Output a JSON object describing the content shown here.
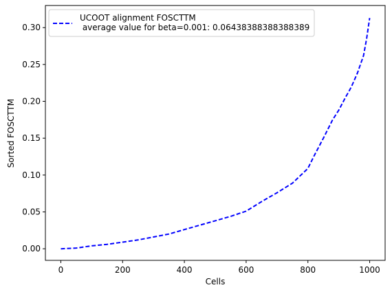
{
  "chart_data": {
    "type": "line",
    "xlabel": "Cells",
    "ylabel": "Sorted FOSCTTM",
    "xlim": [
      -50,
      1050
    ],
    "ylim": [
      -0.0157,
      0.33
    ],
    "grid": false,
    "legend_position": "top-left",
    "x_ticks": [
      0,
      200,
      400,
      600,
      800,
      1000
    ],
    "x_tick_labels": [
      "0",
      "200",
      "400",
      "600",
      "800",
      "1000"
    ],
    "y_ticks": [
      0.0,
      0.05,
      0.1,
      0.15,
      0.2,
      0.25,
      0.3
    ],
    "y_tick_labels": [
      "0.00",
      "0.05",
      "0.10",
      "0.15",
      "0.20",
      "0.25",
      "0.30"
    ],
    "series": [
      {
        "name": "UCOOT alignment FOSCTTM\n average value for beta=0.001: 0.06438388388388389",
        "color": "#0000ff",
        "linestyle": "dashed",
        "x": [
          0,
          50,
          100,
          150,
          200,
          250,
          300,
          350,
          400,
          450,
          500,
          550,
          600,
          650,
          700,
          750,
          800,
          820,
          850,
          880,
          900,
          920,
          940,
          960,
          980,
          990,
          1000
        ],
        "y": [
          0.0,
          0.001,
          0.004,
          0.006,
          0.009,
          0.012,
          0.016,
          0.02,
          0.026,
          0.032,
          0.038,
          0.044,
          0.051,
          0.064,
          0.076,
          0.089,
          0.109,
          0.126,
          0.15,
          0.175,
          0.188,
          0.204,
          0.219,
          0.238,
          0.262,
          0.285,
          0.313
        ]
      }
    ]
  }
}
